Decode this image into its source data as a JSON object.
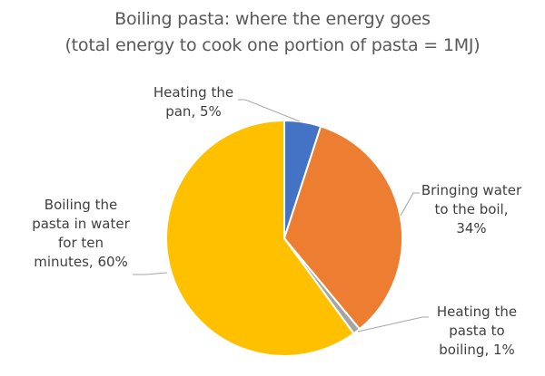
{
  "chart_data": {
    "type": "pie",
    "title": "Boiling pasta: where the energy goes",
    "subtitle": "(total energy to cook one portion of pasta = 1MJ)",
    "categories": [
      "Heating the pan",
      "Bringing water to the boil",
      "Heating the pasta to boiling",
      "Boiling the pasta in water for ten minutes"
    ],
    "values": [
      5,
      34,
      1,
      60
    ],
    "unit": "%",
    "colors": [
      "#4472C4",
      "#ED7D31",
      "#A5A5A5",
      "#FFC000"
    ],
    "start_angle_deg": 0,
    "direction": "clockwise",
    "legend": "none",
    "data_labels": [
      {
        "lines": [
          "Heating the",
          "pan, 5%"
        ]
      },
      {
        "lines": [
          "Bringing water",
          "to the boil,",
          "34%"
        ]
      },
      {
        "lines": [
          "Heating the",
          "pasta to",
          "boiling, 1%"
        ]
      },
      {
        "lines": [
          "Boiling the",
          "pasta in water",
          "for ten",
          "minutes, 60%"
        ]
      }
    ]
  }
}
